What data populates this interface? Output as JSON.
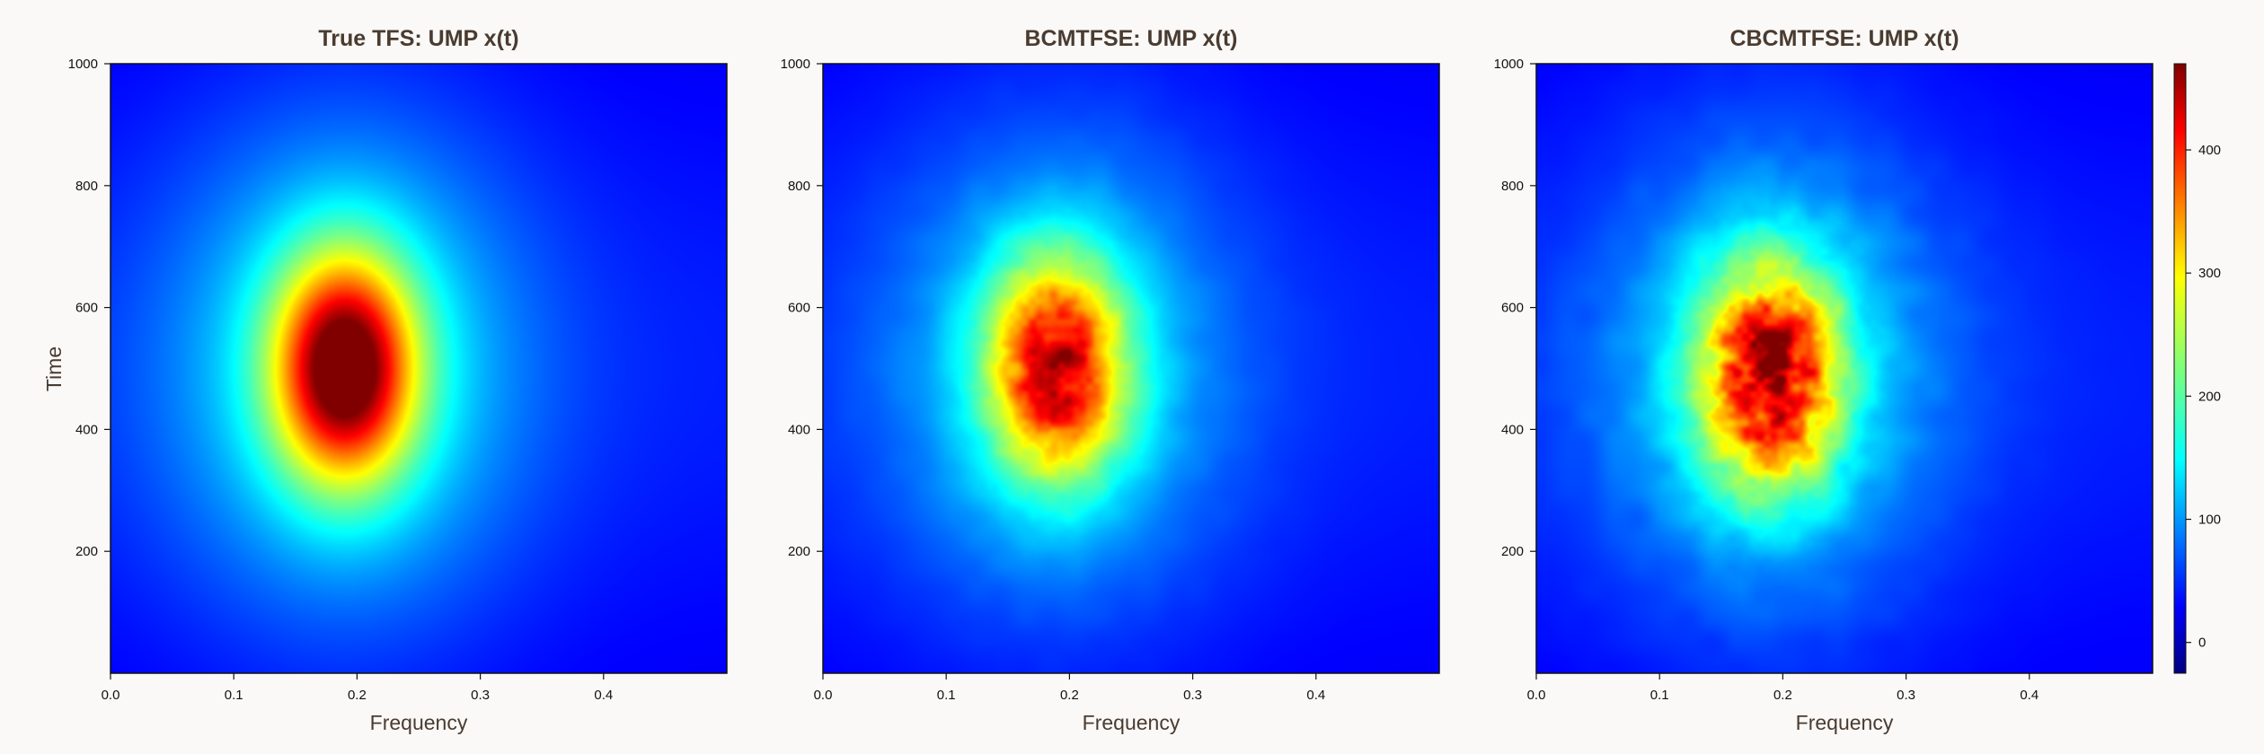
{
  "chart_data": [
    {
      "type": "heatmap",
      "title": "True TFS: UMP x(t)",
      "xlabel": "Frequency",
      "ylabel": "Time",
      "xlim": [
        0,
        0.5
      ],
      "ylim": [
        0,
        1000
      ],
      "xticks": [
        "0.0",
        "0.1",
        "0.2",
        "0.3",
        "0.4"
      ],
      "yticks": [
        "200",
        "400",
        "600",
        "800",
        "1000"
      ],
      "peak": {
        "frequency": 0.19,
        "time": 500,
        "value": 470
      },
      "texture": "smooth"
    },
    {
      "type": "heatmap",
      "title": "BCMTFSE:  UMP x(t)",
      "xlabel": "Frequency",
      "ylabel": "",
      "xlim": [
        0,
        0.5
      ],
      "ylim": [
        0,
        1000
      ],
      "xticks": [
        "0.0",
        "0.1",
        "0.2",
        "0.3",
        "0.4"
      ],
      "yticks": [
        "200",
        "400",
        "600",
        "800",
        "1000"
      ],
      "peak": {
        "frequency": 0.19,
        "time": 500,
        "value": 380
      },
      "texture": "slightly noisy"
    },
    {
      "type": "heatmap",
      "title": "CBCMTFSE:  UMP x(t)",
      "xlabel": "Frequency",
      "ylabel": "",
      "xlim": [
        0,
        0.5
      ],
      "ylim": [
        0,
        1000
      ],
      "xticks": [
        "0.0",
        "0.1",
        "0.2",
        "0.3",
        "0.4"
      ],
      "yticks": [
        "200",
        "400",
        "600",
        "800",
        "1000"
      ],
      "peak": {
        "frequency": 0.19,
        "time": 490,
        "value": 400
      },
      "texture": "noisy"
    }
  ],
  "colorbar": {
    "colormap": "jet",
    "range": [
      -25,
      470
    ],
    "ticks": [
      "0",
      "100",
      "200",
      "300",
      "400"
    ]
  }
}
